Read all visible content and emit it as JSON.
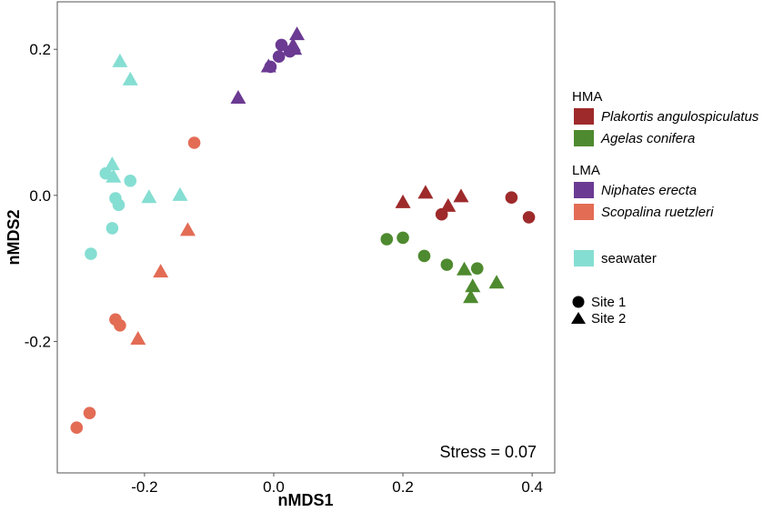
{
  "chart_data": {
    "type": "scatter",
    "title": "",
    "xlabel": "nMDS1",
    "ylabel": "nMDS2",
    "xlim": [
      -0.335,
      0.435
    ],
    "ylim": [
      -0.38,
      0.265
    ],
    "x_ticks": [
      -0.2,
      0.0,
      0.2,
      0.4
    ],
    "x_tick_labels": [
      "-0.2",
      "0.0",
      "0.2",
      "0.4"
    ],
    "y_ticks": [
      -0.2,
      0.0,
      0.2
    ],
    "y_tick_labels": [
      "-0.2",
      "0.0",
      "0.2"
    ],
    "grid": false,
    "annotation": "Stress = 0.07",
    "legend_position": "right",
    "legend": {
      "groups": [
        {
          "title": "HMA",
          "items": [
            {
              "label": "Plakortis angulospiculatus",
              "color": "#9e2a2b"
            },
            {
              "label": "Agelas conifera",
              "color": "#4e8a2f"
            }
          ]
        },
        {
          "title": "LMA",
          "items": [
            {
              "label": "Niphates erecta",
              "color": "#6b3a92"
            },
            {
              "label": "Scopalina ruetzleri",
              "color": "#e36c55"
            }
          ]
        },
        {
          "title": "",
          "items": [
            {
              "label": "seawater",
              "color": "#85ded2"
            }
          ]
        }
      ],
      "shapes": [
        {
          "label": "Site 1",
          "shape": "circle"
        },
        {
          "label": "Site 2",
          "shape": "triangle"
        }
      ]
    },
    "series": [
      {
        "name": "Plakortis angulospiculatus",
        "color": "#9e2a2b",
        "points": [
          {
            "x": 0.26,
            "y": -0.026,
            "site": 1
          },
          {
            "x": 0.368,
            "y": -0.003,
            "site": 1
          },
          {
            "x": 0.395,
            "y": -0.03,
            "site": 1
          },
          {
            "x": 0.2,
            "y": -0.01,
            "site": 2
          },
          {
            "x": 0.235,
            "y": 0.003,
            "site": 2
          },
          {
            "x": 0.27,
            "y": -0.015,
            "site": 2
          },
          {
            "x": 0.29,
            "y": -0.002,
            "site": 2
          }
        ]
      },
      {
        "name": "Agelas conifera",
        "color": "#4e8a2f",
        "points": [
          {
            "x": 0.175,
            "y": -0.06,
            "site": 1
          },
          {
            "x": 0.2,
            "y": -0.058,
            "site": 1
          },
          {
            "x": 0.233,
            "y": -0.083,
            "site": 1
          },
          {
            "x": 0.268,
            "y": -0.095,
            "site": 1
          },
          {
            "x": 0.315,
            "y": -0.1,
            "site": 1
          },
          {
            "x": 0.295,
            "y": -0.102,
            "site": 2
          },
          {
            "x": 0.308,
            "y": -0.125,
            "site": 2
          },
          {
            "x": 0.305,
            "y": -0.14,
            "site": 2
          },
          {
            "x": 0.345,
            "y": -0.12,
            "site": 2
          }
        ]
      },
      {
        "name": "Niphates erecta",
        "color": "#6b3a92",
        "points": [
          {
            "x": -0.005,
            "y": 0.176,
            "site": 1
          },
          {
            "x": 0.008,
            "y": 0.19,
            "site": 1
          },
          {
            "x": 0.012,
            "y": 0.206,
            "site": 1
          },
          {
            "x": 0.025,
            "y": 0.197,
            "site": 1
          },
          {
            "x": -0.055,
            "y": 0.133,
            "site": 2
          },
          {
            "x": -0.008,
            "y": 0.176,
            "site": 2
          },
          {
            "x": 0.032,
            "y": 0.2,
            "site": 2
          },
          {
            "x": 0.03,
            "y": 0.205,
            "site": 2
          },
          {
            "x": 0.036,
            "y": 0.22,
            "site": 2
          }
        ]
      },
      {
        "name": "Scopalina ruetzleri",
        "color": "#e36c55",
        "points": [
          {
            "x": -0.123,
            "y": 0.072,
            "site": 1
          },
          {
            "x": -0.245,
            "y": -0.17,
            "site": 1
          },
          {
            "x": -0.238,
            "y": -0.178,
            "site": 1
          },
          {
            "x": -0.285,
            "y": -0.298,
            "site": 1
          },
          {
            "x": -0.305,
            "y": -0.318,
            "site": 1
          },
          {
            "x": -0.133,
            "y": -0.048,
            "site": 2
          },
          {
            "x": -0.175,
            "y": -0.105,
            "site": 2
          },
          {
            "x": -0.21,
            "y": -0.197,
            "site": 2
          }
        ]
      },
      {
        "name": "seawater",
        "color": "#85ded2",
        "points": [
          {
            "x": -0.26,
            "y": 0.03,
            "site": 1
          },
          {
            "x": -0.222,
            "y": 0.02,
            "site": 1
          },
          {
            "x": -0.245,
            "y": -0.004,
            "site": 1
          },
          {
            "x": -0.24,
            "y": -0.013,
            "site": 1
          },
          {
            "x": -0.25,
            "y": -0.045,
            "site": 1
          },
          {
            "x": -0.283,
            "y": -0.08,
            "site": 1
          },
          {
            "x": -0.238,
            "y": 0.183,
            "site": 2
          },
          {
            "x": -0.222,
            "y": 0.158,
            "site": 2
          },
          {
            "x": -0.25,
            "y": 0.042,
            "site": 2
          },
          {
            "x": -0.248,
            "y": 0.025,
            "site": 2
          },
          {
            "x": -0.193,
            "y": -0.003,
            "site": 2
          },
          {
            "x": -0.145,
            "y": 0.0,
            "site": 2
          }
        ]
      }
    ]
  }
}
